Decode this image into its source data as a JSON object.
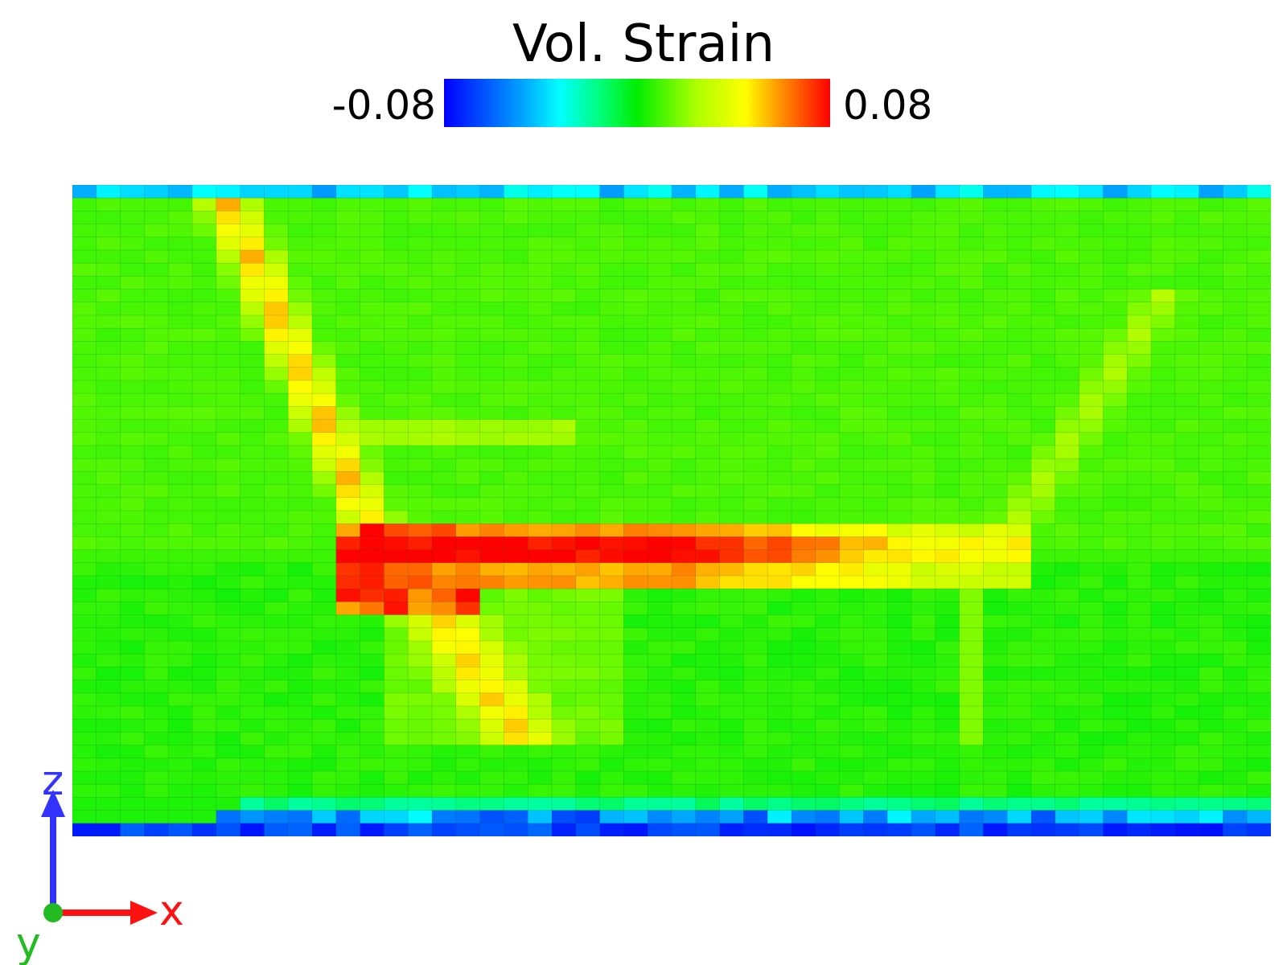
{
  "title": "Vol. Strain",
  "colorbar": {
    "min_label": "-0.08",
    "max_label": "0.08",
    "min": -0.08,
    "max": 0.08,
    "colormap": "blue-cyan-green-yellow-red"
  },
  "axes_triad": {
    "z_label": "z",
    "x_label": "x",
    "y_label": "y",
    "z_color": "#3333ff",
    "x_color": "#ff1111",
    "y_color": "#22bb22"
  },
  "grid": {
    "columns": 50,
    "rows": 50
  }
}
